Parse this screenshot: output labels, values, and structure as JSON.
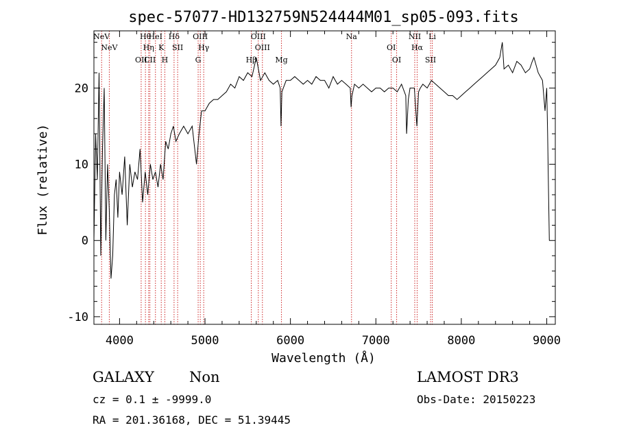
{
  "chart_data": {
    "type": "line",
    "title": "spec-57077-HD132759N524444M01_sp05-093.fits",
    "xlabel": "Wavelength (Å)",
    "ylabel": "Flux (relative)",
    "xlim": [
      3700,
      9100
    ],
    "ylim": [
      -11,
      27.5
    ],
    "xticks": [
      4000,
      5000,
      6000,
      7000,
      8000,
      9000
    ],
    "yticks": [
      -10,
      0,
      10,
      20
    ],
    "grid": false,
    "series": [
      {
        "name": "spectrum",
        "x": [
          3700,
          3720,
          3740,
          3760,
          3780,
          3800,
          3820,
          3840,
          3860,
          3880,
          3900,
          3920,
          3940,
          3960,
          3980,
          4000,
          4030,
          4060,
          4090,
          4120,
          4150,
          4180,
          4210,
          4240,
          4270,
          4300,
          4330,
          4360,
          4390,
          4420,
          4450,
          4480,
          4510,
          4540,
          4570,
          4600,
          4630,
          4660,
          4700,
          4750,
          4800,
          4850,
          4900,
          4930,
          4960,
          5000,
          5050,
          5100,
          5150,
          5200,
          5250,
          5300,
          5350,
          5400,
          5450,
          5500,
          5550,
          5600,
          5650,
          5700,
          5750,
          5800,
          5850,
          5880,
          5890,
          5900,
          5950,
          6000,
          6050,
          6100,
          6150,
          6200,
          6250,
          6300,
          6350,
          6400,
          6450,
          6500,
          6550,
          6600,
          6650,
          6700,
          6710,
          6720,
          6750,
          6800,
          6850,
          6900,
          6950,
          7000,
          7050,
          7100,
          7150,
          7200,
          7250,
          7300,
          7350,
          7360,
          7380,
          7400,
          7450,
          7480,
          7500,
          7520,
          7550,
          7600,
          7650,
          7700,
          7750,
          7800,
          7850,
          7900,
          7950,
          8000,
          8050,
          8100,
          8150,
          8200,
          8250,
          8300,
          8350,
          8400,
          8450,
          8480,
          8500,
          8550,
          8600,
          8650,
          8700,
          8750,
          8800,
          8830,
          8850,
          8900,
          8950,
          8980,
          9000,
          9010,
          9020,
          9030
        ],
        "values": [
          0.0,
          14.0,
          8.0,
          22.0,
          -2.0,
          12.0,
          20.0,
          0.0,
          10.0,
          4.0,
          -5.0,
          -2.0,
          6.0,
          8.0,
          3.0,
          9.0,
          6.0,
          11.0,
          2.0,
          10.0,
          7.0,
          9.0,
          8.0,
          12.0,
          5.0,
          9.0,
          6.0,
          10.0,
          8.0,
          9.0,
          7.0,
          10.0,
          8.0,
          13.0,
          12.0,
          14.0,
          15.0,
          13.0,
          14.0,
          15.0,
          14.0,
          15.0,
          10.0,
          14.0,
          17.0,
          17.0,
          18.0,
          18.5,
          18.5,
          19.0,
          19.5,
          20.5,
          20.0,
          21.5,
          21.0,
          22.0,
          21.5,
          24.0,
          21.0,
          22.0,
          21.0,
          20.5,
          21.0,
          20.0,
          15.0,
          19.5,
          21.0,
          21.0,
          21.5,
          21.0,
          20.5,
          21.0,
          20.5,
          21.5,
          21.0,
          21.0,
          20.0,
          21.5,
          20.5,
          21.0,
          20.5,
          20.0,
          17.5,
          19.0,
          20.5,
          20.0,
          20.5,
          20.0,
          19.5,
          20.0,
          20.0,
          19.5,
          20.0,
          20.0,
          19.5,
          20.5,
          19.0,
          14.0,
          18.5,
          20.0,
          20.0,
          15.0,
          19.5,
          20.0,
          20.5,
          20.0,
          21.0,
          20.5,
          20.0,
          19.5,
          19.0,
          19.0,
          18.5,
          19.0,
          19.5,
          20.0,
          20.5,
          21.0,
          21.5,
          22.0,
          22.5,
          23.0,
          24.0,
          26.0,
          22.5,
          23.0,
          22.0,
          23.5,
          23.0,
          22.0,
          22.5,
          23.5,
          24.0,
          22.0,
          21.0,
          17.0,
          20.0,
          14.0,
          7.0,
          0.0
        ]
      }
    ],
    "lines": [
      {
        "name": "NeV",
        "x": 3790
      },
      {
        "name": "NeV",
        "x": 3880
      },
      {
        "name": "OII",
        "x": 4253
      },
      {
        "name": "Hθ",
        "x": 4303
      },
      {
        "name": "Hη",
        "x": 4340
      },
      {
        "name": "CII",
        "x": 4355
      },
      {
        "name": "HeI",
        "x": 4420
      },
      {
        "name": "K",
        "x": 4488
      },
      {
        "name": "H",
        "x": 4530
      },
      {
        "name": "Hδ",
        "x": 4638
      },
      {
        "name": "SII",
        "x": 4680
      },
      {
        "name": "G",
        "x": 4920
      },
      {
        "name": "OIII",
        "x": 4945
      },
      {
        "name": "Hγ",
        "x": 4985
      },
      {
        "name": "Hβ",
        "x": 5542
      },
      {
        "name": "OIII",
        "x": 5624
      },
      {
        "name": "OIII",
        "x": 5672
      },
      {
        "name": "Mg",
        "x": 5895
      },
      {
        "name": "Na",
        "x": 6715
      },
      {
        "name": "OI",
        "x": 7180
      },
      {
        "name": "OI",
        "x": 7243
      },
      {
        "name": "NII",
        "x": 7455
      },
      {
        "name": "Hα",
        "x": 7483
      },
      {
        "name": "SII",
        "x": 7640
      },
      {
        "name": "Li",
        "x": 7660
      }
    ]
  },
  "info": {
    "object_class": "GALAXY",
    "subclass": "Non",
    "survey": "LAMOST DR3",
    "cz": "cz = 0.1 ± -9999.0",
    "obs_date": "Obs-Date: 20150223",
    "coords": "RA = 201.36168, DEC =  51.39445"
  },
  "colors": {
    "line_marker": "#cc2222",
    "spectrum": "#000000",
    "axes": "#000000"
  }
}
